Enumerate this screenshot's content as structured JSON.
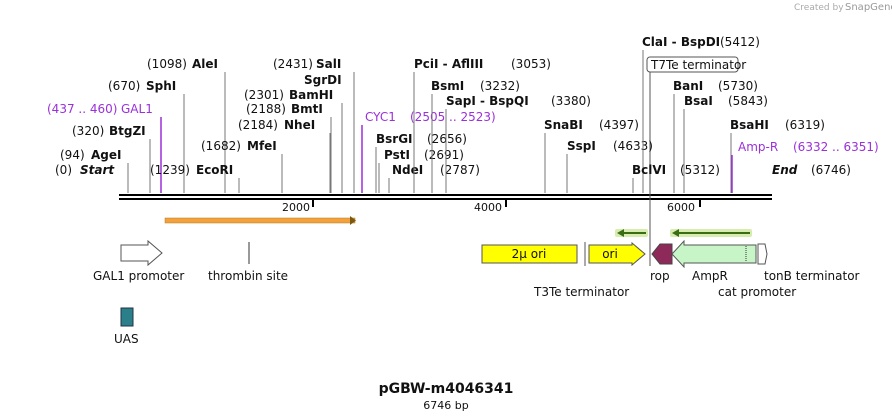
{
  "header": {
    "credit": "Created by",
    "brand": "SnapGene"
  },
  "sites": [
    {
      "name": "Start",
      "position": "(0)"
    },
    {
      "name": "AgeI",
      "position": "(94)"
    },
    {
      "name": "BtgZI",
      "position": "(320)"
    },
    {
      "name": "GAL1",
      "position": "(437 .. 460)"
    },
    {
      "name": "SphI",
      "position": "(670)"
    },
    {
      "name": "AleI",
      "position": "(1098)"
    },
    {
      "name": "EcoRI",
      "position": "(1239)"
    },
    {
      "name": "MfeI",
      "position": "(1682)"
    },
    {
      "name": "NheI",
      "position": "(2184)"
    },
    {
      "name": "BmtI",
      "position": "(2188)"
    },
    {
      "name": "BamHI",
      "position": "(2301)"
    },
    {
      "name": "SgrDI"
    },
    {
      "name": "SalI",
      "position": "(2431)"
    },
    {
      "name": "CYC1",
      "position": "(2505 .. 2523)"
    },
    {
      "name": "BsrGI",
      "position": "(2656)"
    },
    {
      "name": "PstI",
      "position": "(2691)"
    },
    {
      "name": "NdeI",
      "position": "(2787)"
    },
    {
      "name": "PciI  - AflIII",
      "position": "(3053)"
    },
    {
      "name": "BsmI",
      "position": "(3232)"
    },
    {
      "name": "SapI  - BspQI",
      "position": "(3380)"
    },
    {
      "name": "SnaBI",
      "position": "(4397)"
    },
    {
      "name": "SspI",
      "position": "(4633)"
    },
    {
      "name": "ClaI  - BspDI",
      "position": "(5412)"
    },
    {
      "name": "BanI",
      "position": "(5730)"
    },
    {
      "name": "BsaI",
      "position": "(5843)"
    },
    {
      "name": "BsaHI",
      "position": "(6319)"
    },
    {
      "name": "Amp-R",
      "position": "(6332 .. 6351)"
    },
    {
      "name": "BclVI",
      "position": "(5312)"
    },
    {
      "name": "End",
      "position": "(6746)"
    }
  ],
  "ruler": [
    "2000",
    "4000",
    "6000"
  ],
  "features": {
    "gal1_promoter": "GAL1 promoter",
    "thrombin_site": "thrombin site",
    "uas": "UAS",
    "two_micron_ori": "2μ ori",
    "t3te_terminator": "T3Te terminator",
    "ori": "ori",
    "rop": "rop",
    "ampr": "AmpR",
    "cat_promoter": "cat promoter",
    "tonb_terminator": "tonB terminator",
    "t7te_terminator": "T7Te terminator"
  },
  "title": "pGBW-m4046341",
  "subtitle": "6746 bp"
}
